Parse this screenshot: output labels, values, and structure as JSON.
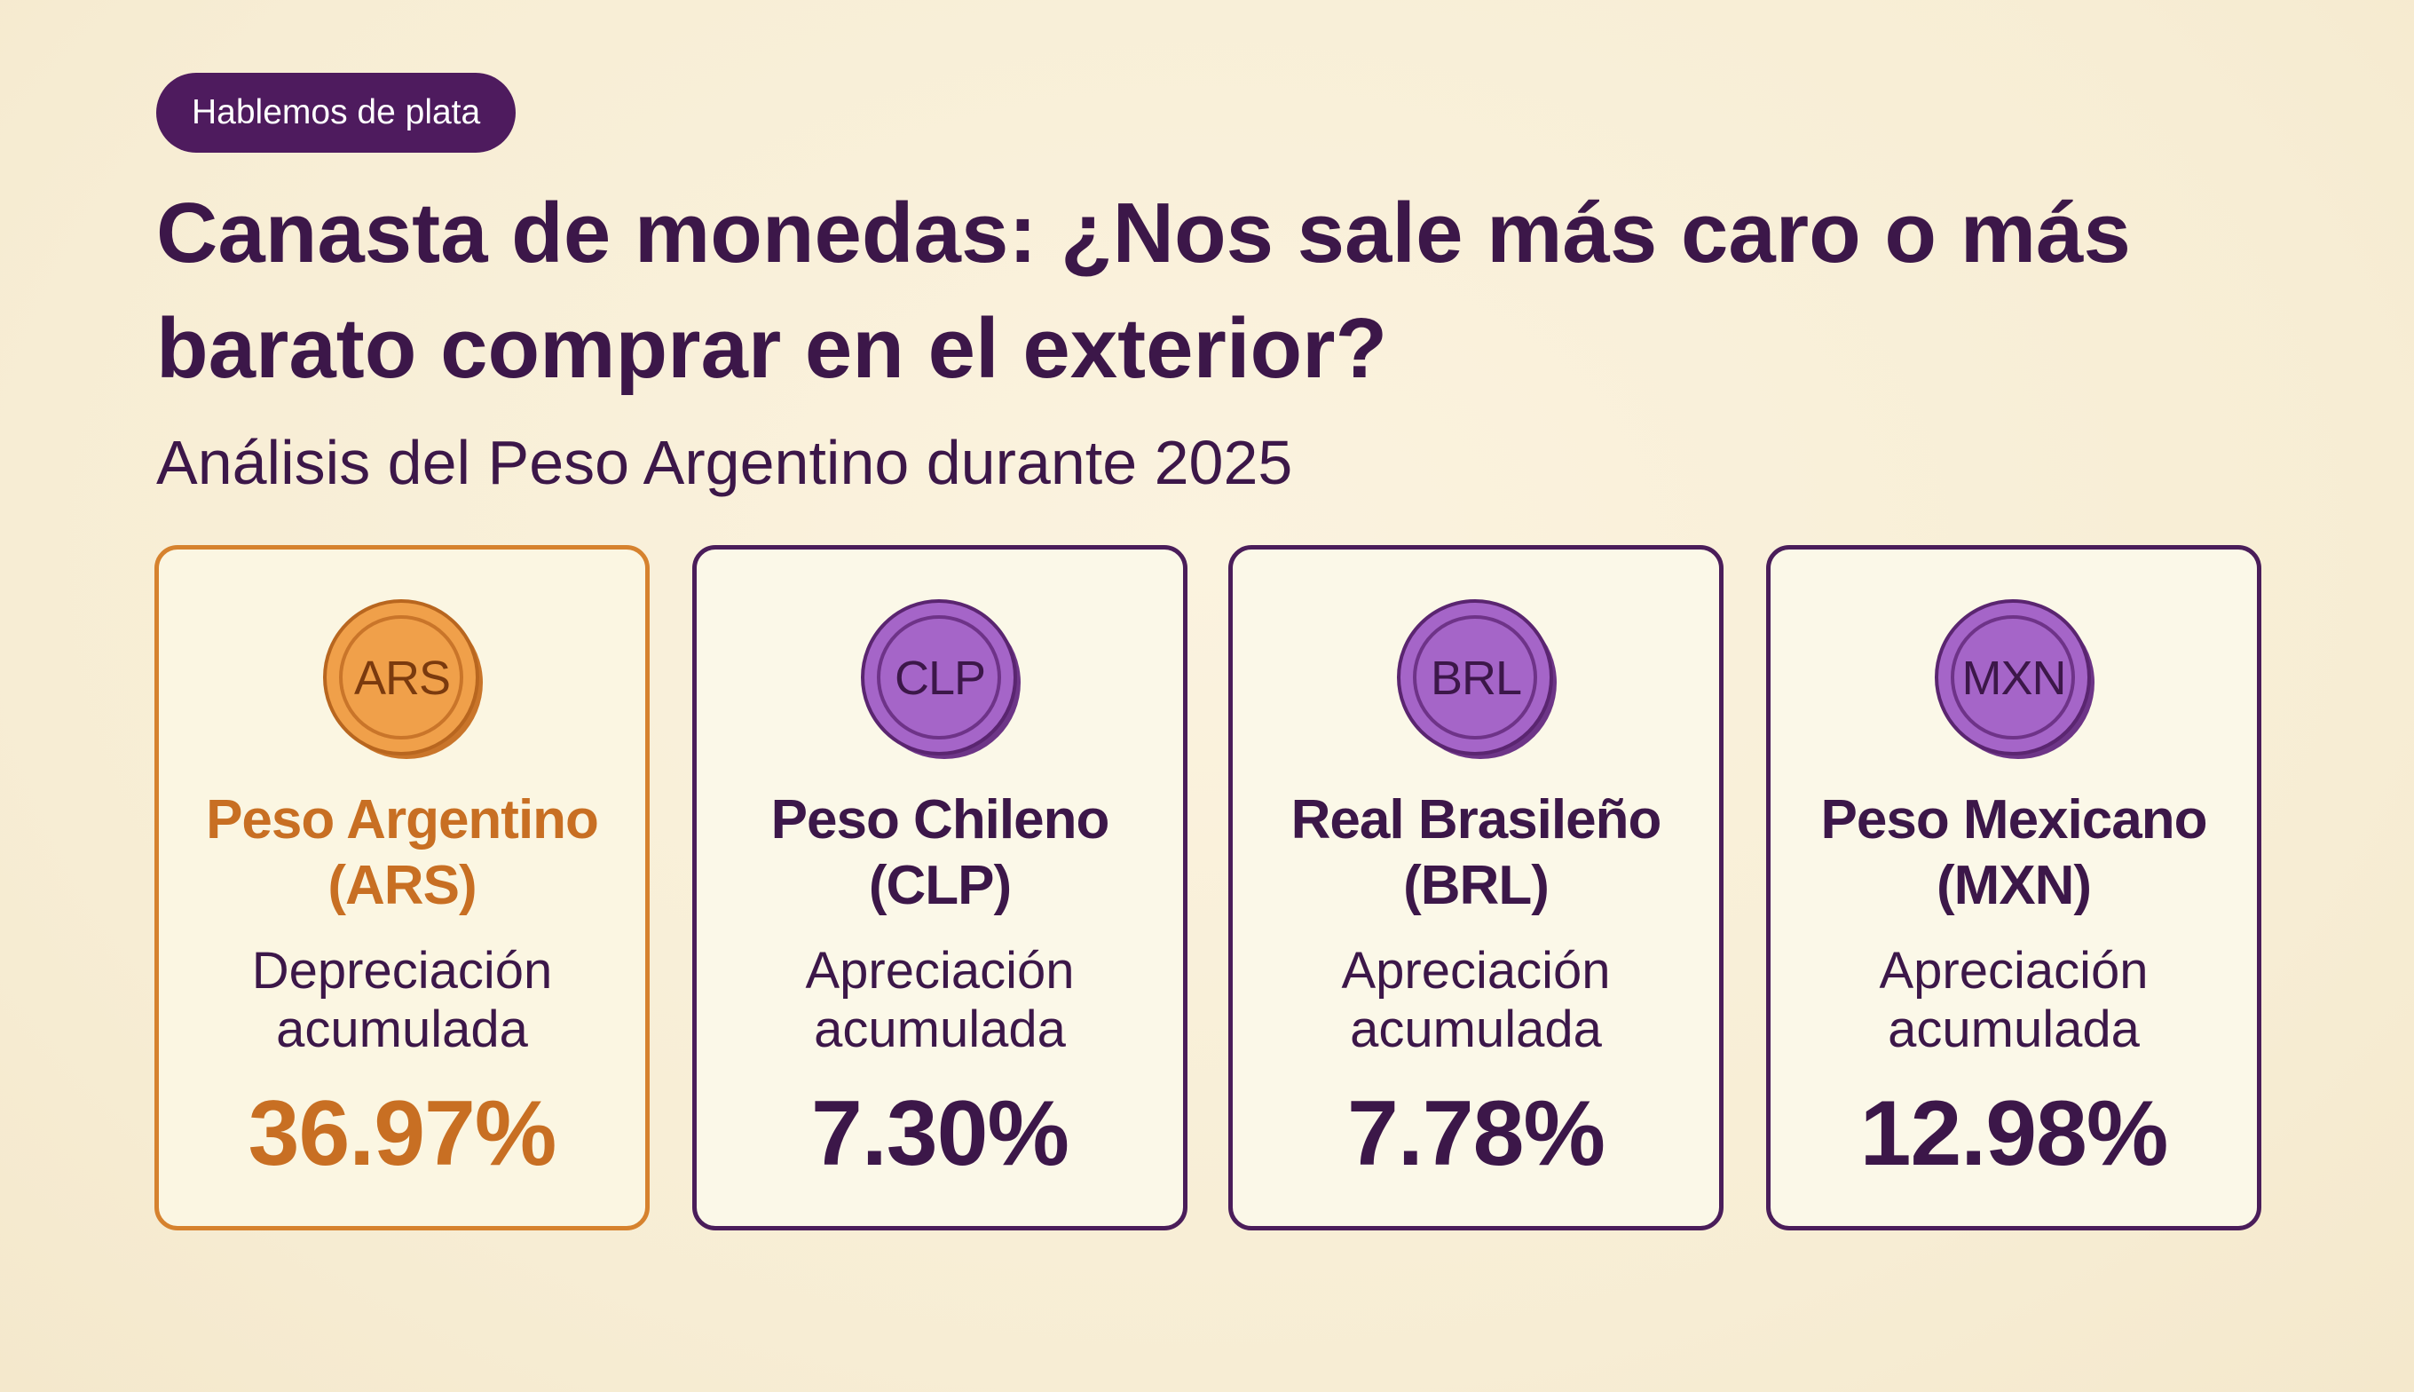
{
  "badge": "Hablemos de plata",
  "title": "Canasta de monedas: ¿Nos sale más caro o más barato comprar en el exterior?",
  "subtitle": "Análisis del Peso Argentino durante 2025",
  "colors": {
    "background": "#f8efd7",
    "primary": "#3c1749",
    "accent": "#c86f23",
    "coin_purple": "#a565c8",
    "coin_orange": "#f0a04a"
  },
  "cards": [
    {
      "coin_icon": "coin-icon",
      "code": "ARS",
      "name_line1": "Peso Argentino",
      "name_line2": "(ARS)",
      "desc_line1": "Depreciación",
      "desc_line2": "acumulada",
      "value": "36.97%"
    },
    {
      "coin_icon": "coin-icon",
      "code": "CLP",
      "name_line1": "Peso Chileno",
      "name_line2": "(CLP)",
      "desc_line1": "Apreciación",
      "desc_line2": "acumulada",
      "value": "7.30%"
    },
    {
      "coin_icon": "coin-icon",
      "code": "BRL",
      "name_line1": "Real Brasileño",
      "name_line2": "(BRL)",
      "desc_line1": "Apreciación",
      "desc_line2": "acumulada",
      "value": "7.78%"
    },
    {
      "coin_icon": "coin-icon",
      "code": "MXN",
      "name_line1": "Peso Mexicano",
      "name_line2": "(MXN)",
      "desc_line1": "Apreciación",
      "desc_line2": "acumulada",
      "value": "12.98%"
    }
  ]
}
